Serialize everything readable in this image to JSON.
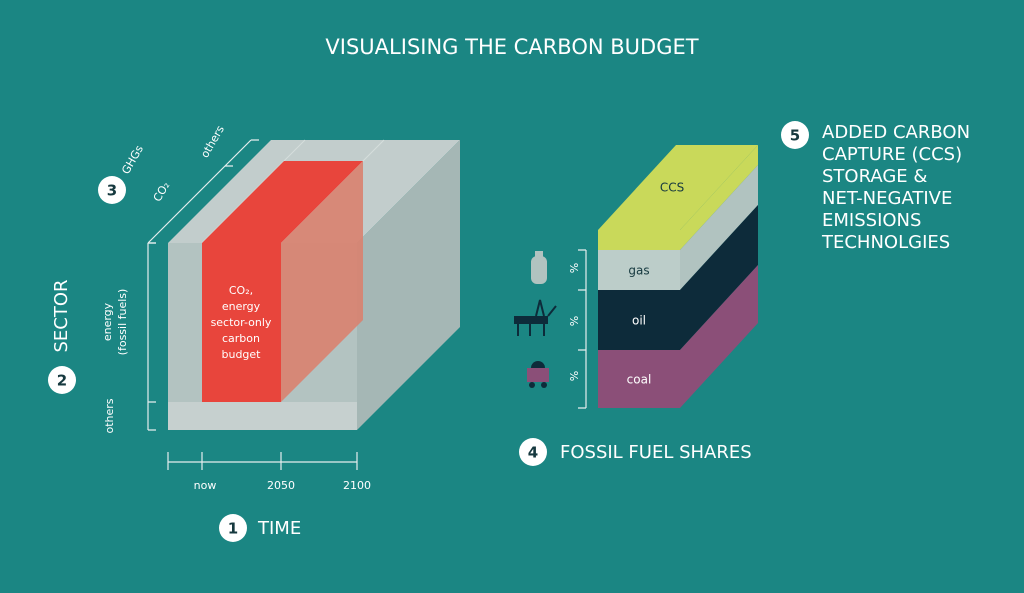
{
  "title": "VISUALISING THE CARBON BUDGET",
  "time": {
    "step": "1",
    "label": "TIME",
    "ticks": [
      "now",
      "2050",
      "2100"
    ]
  },
  "sector": {
    "step": "2",
    "label": "SECTOR",
    "energy_lines": [
      "energy",
      "(fossil fuels)"
    ],
    "others": "others"
  },
  "gases": {
    "step": "3",
    "labels": [
      "CO₂",
      "GHGs",
      "others"
    ]
  },
  "budget": {
    "lines": [
      "CO₂,",
      "energy",
      "sector-only",
      "carbon",
      "budget"
    ]
  },
  "fossil": {
    "step": "4",
    "label": "FOSSIL FUEL SHARES",
    "layers": [
      "CCS",
      "gas",
      "oil",
      "coal"
    ],
    "share_marks": [
      "%",
      "%",
      "%"
    ]
  },
  "ccs": {
    "step": "5",
    "lines": [
      "ADDED CARBON",
      "CAPTURE (CCS)",
      "STORAGE &",
      "NET-NEGATIVE",
      "EMISSIONS",
      "TECHNOLGIES"
    ]
  }
}
